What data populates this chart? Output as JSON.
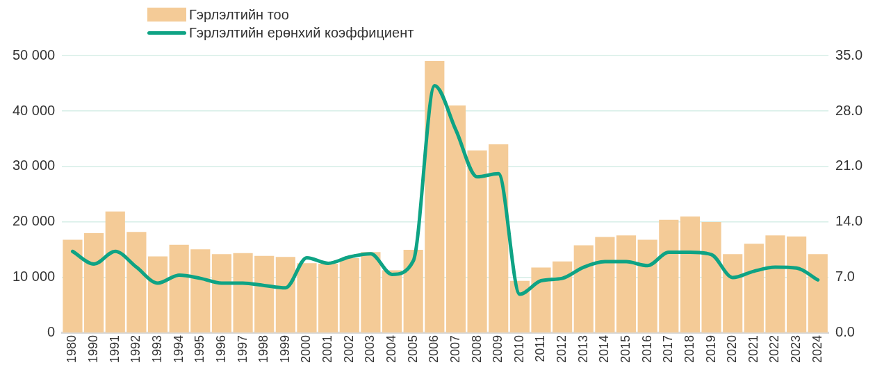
{
  "chart_data": {
    "type": "bar",
    "categories": [
      "1980",
      "1990",
      "1991",
      "1992",
      "1993",
      "1994",
      "1995",
      "1996",
      "1997",
      "1998",
      "1999",
      "2000",
      "2001",
      "2002",
      "2003",
      "2004",
      "2005",
      "2006",
      "2007",
      "2008",
      "2009",
      "2010",
      "2011",
      "2012",
      "2013",
      "2014",
      "2015",
      "2016",
      "2017",
      "2018",
      "2019",
      "2020",
      "2021",
      "2022",
      "2023",
      "2024"
    ],
    "series": [
      {
        "name": "Гэрлэлтийн тоо",
        "color": "#f4cb97",
        "values": [
          16800,
          18000,
          21900,
          18200,
          13800,
          15900,
          15100,
          14200,
          14400,
          13900,
          13700,
          12600,
          12500,
          13500,
          14600,
          11300,
          15000,
          49000,
          41000,
          32900,
          34000,
          9400,
          11800,
          12900,
          15800,
          17300,
          17600,
          16800,
          20400,
          21000,
          20000,
          14200,
          16100,
          17600,
          17400,
          14200
        ]
      },
      {
        "name": "Гэрлэлтийн ерөнхий коэффициент",
        "type": "line",
        "axis": "y2",
        "color": "#0ea384",
        "values": [
          10.3,
          8.7,
          10.3,
          8.3,
          6.3,
          7.3,
          6.9,
          6.3,
          6.3,
          6.0,
          5.7,
          9.5,
          8.8,
          9.6,
          10.0,
          7.4,
          9.1,
          31.2,
          25.6,
          19.7,
          20.1,
          4.9,
          6.6,
          6.9,
          8.3,
          9.0,
          9.0,
          8.5,
          10.2,
          10.2,
          9.9,
          7.0,
          7.8,
          8.3,
          8.2,
          6.7
        ]
      }
    ],
    "ylim": [
      0,
      50000
    ],
    "yticks": [
      {
        "value": 0,
        "label": "0"
      },
      {
        "value": 10000,
        "label": "10 000"
      },
      {
        "value": 20000,
        "label": "20 000"
      },
      {
        "value": 30000,
        "label": "30 000"
      },
      {
        "value": 40000,
        "label": "40 000"
      },
      {
        "value": 50000,
        "label": "50 000"
      }
    ],
    "y2lim": [
      0,
      35
    ],
    "y2ticks": [
      {
        "value": 0,
        "label": "0.0"
      },
      {
        "value": 7,
        "label": "7.0"
      },
      {
        "value": 14,
        "label": "14.0"
      },
      {
        "value": 21,
        "label": "21.0"
      },
      {
        "value": 28,
        "label": "28.0"
      },
      {
        "value": 35,
        "label": "35.0"
      }
    ],
    "grid": "y",
    "legend": "top left",
    "marker": "none",
    "line_style": "solid"
  }
}
